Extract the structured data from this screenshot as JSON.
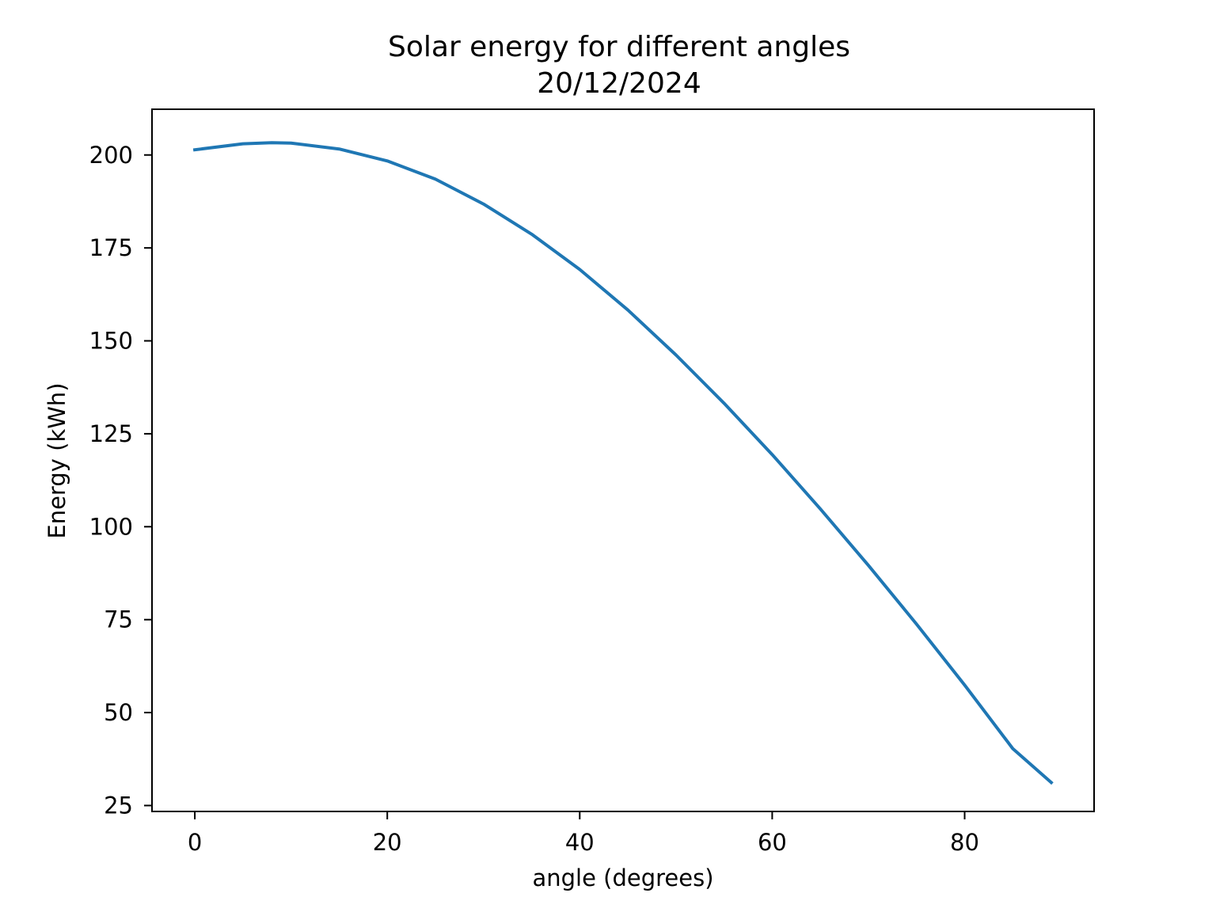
{
  "chart_data": {
    "type": "line",
    "title": "Solar energy for different angles",
    "subtitle": "20/12/2024",
    "xlabel": "angle (degrees)",
    "ylabel": "Energy (kWh)",
    "xlim": [
      -4.45,
      93.45
    ],
    "ylim": [
      23.4,
      212.3
    ],
    "xticks": [
      0,
      20,
      40,
      60,
      80
    ],
    "yticks": [
      25,
      50,
      75,
      100,
      125,
      150,
      175,
      200
    ],
    "grid": false,
    "line_color": "#1f77b4",
    "series": [
      {
        "x": [
          0,
          5,
          8,
          10,
          15,
          20,
          25,
          30,
          35,
          40,
          45,
          50,
          55,
          60,
          65,
          70,
          75,
          80,
          85,
          89
        ],
        "y": [
          201.4,
          203.0,
          203.3,
          203.2,
          201.6,
          198.4,
          193.5,
          186.8,
          178.7,
          169.2,
          158.3,
          146.2,
          133.2,
          119.4,
          104.8,
          89.6,
          73.8,
          57.4,
          40.3,
          31.2
        ]
      }
    ]
  }
}
